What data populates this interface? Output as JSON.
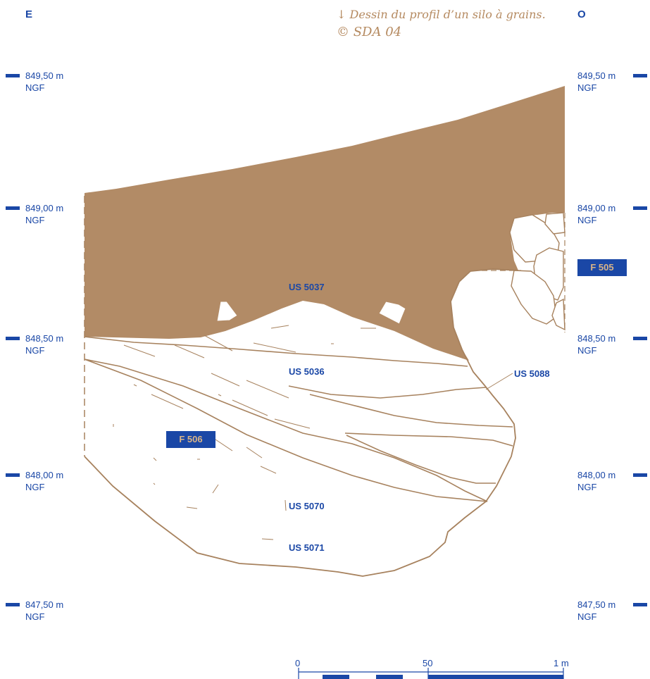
{
  "header": {
    "left_orientation": "E",
    "right_orientation": "O",
    "caption_line1": "↓ Dessin du profil d’un silo à grains.",
    "caption_line2": "© SDA 04"
  },
  "levels": [
    {
      "value": "849,50 m",
      "unit": "NGF"
    },
    {
      "value": "849,00 m",
      "unit": "NGF"
    },
    {
      "value": "848,50 m",
      "unit": "NGF"
    },
    {
      "value": "848,00 m",
      "unit": "NGF"
    },
    {
      "value": "847,50 m",
      "unit": "NGF"
    }
  ],
  "features": {
    "f505": "F 505",
    "f506": "F 506"
  },
  "units": {
    "us5037": "US 5037",
    "us5036": "US 5036",
    "us5088": "US 5088",
    "us5070": "US 5070",
    "us5071": "US 5071"
  },
  "scale": {
    "zero": "0",
    "mid": "50",
    "end": "1 m"
  },
  "colors": {
    "fill": "#b28b66",
    "line": "#a7825e",
    "accent": "#1a47a6"
  }
}
